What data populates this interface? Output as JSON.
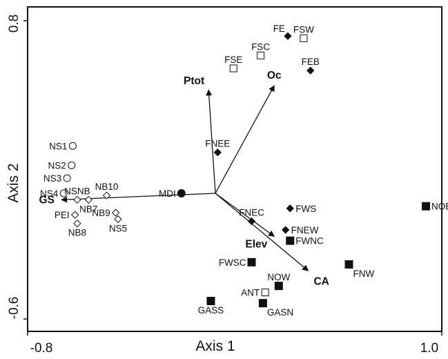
{
  "chart_data": {
    "type": "scatter",
    "title": "",
    "xlabel": "Axis 1",
    "ylabel": "Axis 2",
    "xlim": [
      -0.8,
      1.0
    ],
    "ylim": [
      -0.6,
      0.8
    ],
    "x_ticks": [
      "-0.8",
      "1.0"
    ],
    "y_ticks": [
      "0.8",
      "-0.6"
    ],
    "grid": false,
    "legend": "none",
    "points": [
      {
        "label": "NS1",
        "x": -0.63,
        "y": 0.22,
        "marker": "circle-open"
      },
      {
        "label": "NS2",
        "x": -0.635,
        "y": 0.13,
        "marker": "circle-open"
      },
      {
        "label": "NS3",
        "x": -0.655,
        "y": 0.07,
        "marker": "circle-open"
      },
      {
        "label": "NS4",
        "x": -0.67,
        "y": 0.0,
        "marker": "circle-open"
      },
      {
        "label": "NSNB",
        "x": -0.61,
        "y": -0.03,
        "marker": "diamond-open"
      },
      {
        "label": "NB7",
        "x": -0.56,
        "y": -0.03,
        "marker": "diamond-open"
      },
      {
        "label": "NB10",
        "x": -0.48,
        "y": -0.01,
        "marker": "diamond-open"
      },
      {
        "label": "NB9",
        "x": -0.44,
        "y": -0.09,
        "marker": "diamond-open"
      },
      {
        "label": "NS5",
        "x": -0.43,
        "y": -0.12,
        "marker": "diamond-open"
      },
      {
        "label": "PEI",
        "x": -0.62,
        "y": -0.1,
        "marker": "diamond-open"
      },
      {
        "label": "NB8",
        "x": -0.61,
        "y": -0.14,
        "marker": "diamond-open"
      },
      {
        "label": "MDI",
        "x": -0.15,
        "y": 0.0,
        "marker": "circle-filled"
      },
      {
        "label": "FNEE",
        "x": 0.01,
        "y": 0.19,
        "marker": "diamond-filled"
      },
      {
        "label": "FNEC",
        "x": 0.16,
        "y": -0.13,
        "marker": "diamond-filled"
      },
      {
        "label": "FWS",
        "x": 0.33,
        "y": -0.07,
        "marker": "diamond-filled"
      },
      {
        "label": "FNEW",
        "x": 0.31,
        "y": -0.17,
        "marker": "diamond-filled"
      },
      {
        "label": "FE",
        "x": 0.32,
        "y": 0.73,
        "marker": "diamond-filled"
      },
      {
        "label": "FEB",
        "x": 0.42,
        "y": 0.57,
        "marker": "diamond-filled"
      },
      {
        "label": "FSW",
        "x": 0.39,
        "y": 0.72,
        "marker": "square-open"
      },
      {
        "label": "FSC",
        "x": 0.2,
        "y": 0.64,
        "marker": "square-open"
      },
      {
        "label": "FSE",
        "x": 0.08,
        "y": 0.58,
        "marker": "square-open"
      },
      {
        "label": "ANT",
        "x": 0.22,
        "y": -0.46,
        "marker": "square-open"
      },
      {
        "label": "NOE",
        "x": 0.93,
        "y": -0.06,
        "marker": "square-filled"
      },
      {
        "label": "FWNC",
        "x": 0.33,
        "y": -0.22,
        "marker": "square-filled"
      },
      {
        "label": "FWSC",
        "x": 0.16,
        "y": -0.32,
        "marker": "square-filled"
      },
      {
        "label": "FNW",
        "x": 0.59,
        "y": -0.33,
        "marker": "square-filled"
      },
      {
        "label": "NOW",
        "x": 0.28,
        "y": -0.43,
        "marker": "square-filled"
      },
      {
        "label": "GASS",
        "x": -0.02,
        "y": -0.5,
        "marker": "square-filled"
      },
      {
        "label": "GASN",
        "x": 0.21,
        "y": -0.51,
        "marker": "square-filled"
      }
    ],
    "vectors": [
      {
        "label": "Ptot",
        "x": -0.03,
        "y": 0.48
      },
      {
        "label": "Oc",
        "x": 0.26,
        "y": 0.5
      },
      {
        "label": "GS",
        "x": -0.68,
        "y": -0.03
      },
      {
        "label": "Elev",
        "x": 0.26,
        "y": -0.2
      },
      {
        "label": "CA",
        "x": 0.41,
        "y": -0.36
      }
    ]
  }
}
